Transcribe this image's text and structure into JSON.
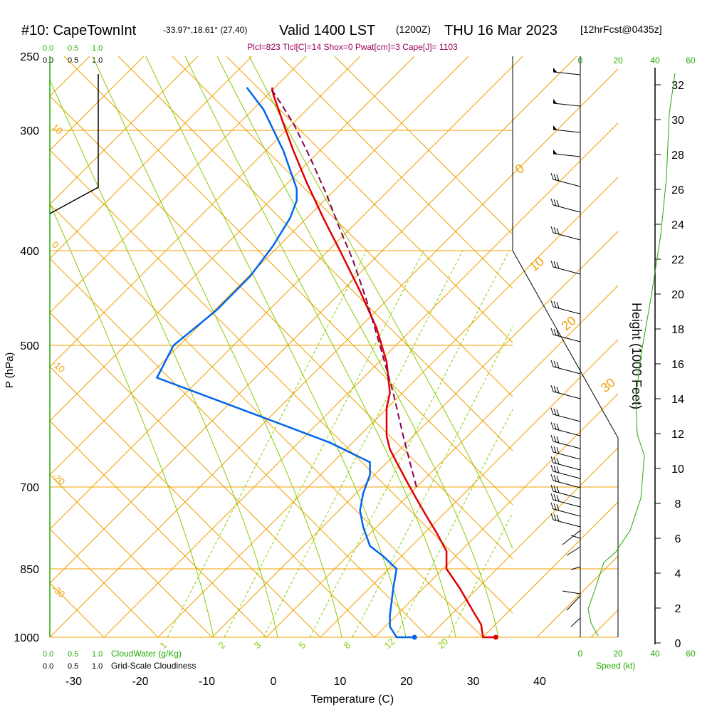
{
  "header": {
    "title_main": "#10: CapeTownInt",
    "title_coords": "-33.97°,18.61° (27,40)",
    "title_valid": "Valid 1400 LST",
    "title_zulu": "(1200Z)",
    "title_date": "THU 16 Mar 2023",
    "title_fcst": "[12hrFcst@0435z]",
    "params": "Plcl=823 Tlcl[C]=14 Shox=0 Pwat[cm]=3 Cape[J]= 1103"
  },
  "colors": {
    "temperature": "#e00000",
    "dewpoint": "#0066ee",
    "parcel": "#880055",
    "isotherm": "#f0a000",
    "dry_adiabat": "#88cc00",
    "moist_adiabat": "#88cc00",
    "height_axis": "#22aa00"
  },
  "top_left_scales": {
    "cloudwater_ticks": [
      "0.0",
      "0.5",
      "1.0"
    ],
    "cloudiness_ticks": [
      "0.0",
      "0.5",
      "1.0"
    ]
  },
  "bottom_left_scales": {
    "cloudwater_ticks": [
      "0.0",
      "0.5",
      "1.0"
    ],
    "cloudwater_label": "CloudWater (g/Kg)",
    "cloudiness_ticks": [
      "0.0",
      "0.5",
      "1.0"
    ],
    "cloudiness_label": "Grid-Scale Cloudiness"
  },
  "speed_axis": {
    "ticks_top": [
      "0",
      "20",
      "40",
      "60"
    ],
    "ticks_bottom": [
      "0",
      "20",
      "40",
      "60"
    ],
    "label": "Speed (kt)"
  },
  "chart_data": {
    "type": "line",
    "xlabel": "Temperature (C)",
    "ylabel": "P (hPa)",
    "y2label": "Height (1000 Feet)",
    "x_ticks": [
      "-30",
      "-20",
      "-10",
      "0",
      "10",
      "20",
      "30",
      "40"
    ],
    "p_ticks": [
      "250",
      "300",
      "400",
      "500",
      "700",
      "850",
      "1000"
    ],
    "height_ticks": [
      "0",
      "2",
      "4",
      "6",
      "8",
      "10",
      "12",
      "14",
      "16",
      "18",
      "20",
      "22",
      "24",
      "26",
      "28",
      "30",
      "32"
    ],
    "xlim": [
      -34,
      46
    ],
    "plim": [
      1000,
      250
    ],
    "isotherm_labels": [
      "10",
      "0",
      "-10",
      "-20",
      "-30",
      "0",
      "10",
      "20",
      "30"
    ],
    "mixing_ratio_labels": [
      "1",
      "2",
      "3",
      "5",
      "8",
      "12",
      "20"
    ],
    "series": [
      {
        "name": "temperature",
        "points": [
          [
            33.4,
            1000
          ],
          [
            31.5,
            1000
          ],
          [
            31.2,
            970
          ],
          [
            30.0,
            940
          ],
          [
            28.0,
            890
          ],
          [
            26.0,
            850
          ],
          [
            26.0,
            815
          ],
          [
            24.5,
            780
          ],
          [
            23.0,
            750
          ],
          [
            21.5,
            720
          ],
          [
            20.0,
            690
          ],
          [
            18.5,
            660
          ],
          [
            17.5,
            640
          ],
          [
            17.0,
            620
          ],
          [
            17.0,
            580
          ],
          [
            17.5,
            560
          ],
          [
            17.0,
            520
          ],
          [
            15.5,
            480
          ],
          [
            13.0,
            440
          ],
          [
            10.0,
            400
          ],
          [
            7.5,
            370
          ],
          [
            5.0,
            340
          ],
          [
            3.0,
            315
          ],
          [
            1.5,
            295
          ],
          [
            0,
            275
          ],
          [
            -0.2,
            270
          ]
        ]
      },
      {
        "name": "dewpoint",
        "points": [
          [
            21.2,
            1000
          ],
          [
            18.5,
            1000
          ],
          [
            17.5,
            975
          ],
          [
            17.5,
            950
          ],
          [
            18.0,
            890
          ],
          [
            18.5,
            850
          ],
          [
            16.5,
            825
          ],
          [
            14.5,
            805
          ],
          [
            13.5,
            770
          ],
          [
            13.0,
            740
          ],
          [
            13.5,
            710
          ],
          [
            14.5,
            680
          ],
          [
            14.5,
            660
          ],
          [
            8.5,
            630
          ],
          [
            -2.5,
            590
          ],
          [
            -17.5,
            540
          ],
          [
            -15.0,
            500
          ],
          [
            -8.5,
            460
          ],
          [
            -3.5,
            425
          ],
          [
            0,
            395
          ],
          [
            2.5,
            370
          ],
          [
            3.5,
            355
          ],
          [
            3.5,
            345
          ],
          [
            1.5,
            315
          ],
          [
            -1.5,
            285
          ],
          [
            -4.0,
            270
          ]
        ]
      },
      {
        "name": "parcel",
        "points": [
          [
            21.5,
            700
          ],
          [
            20.5,
            660
          ],
          [
            19.5,
            620
          ],
          [
            18.0,
            560
          ],
          [
            16.0,
            500
          ],
          [
            14.0,
            450
          ],
          [
            12.0,
            410
          ],
          [
            10.0,
            380
          ],
          [
            8.0,
            350
          ],
          [
            5.5,
            320
          ],
          [
            3.0,
            295
          ],
          [
            1.0,
            280
          ],
          [
            -0.5,
            270
          ]
        ]
      }
    ],
    "surface_points": [
      {
        "name": "surface-temperature",
        "t": 33.4,
        "p": 1000
      },
      {
        "name": "surface-dewpoint",
        "t": 21.2,
        "p": 1000
      }
    ]
  }
}
